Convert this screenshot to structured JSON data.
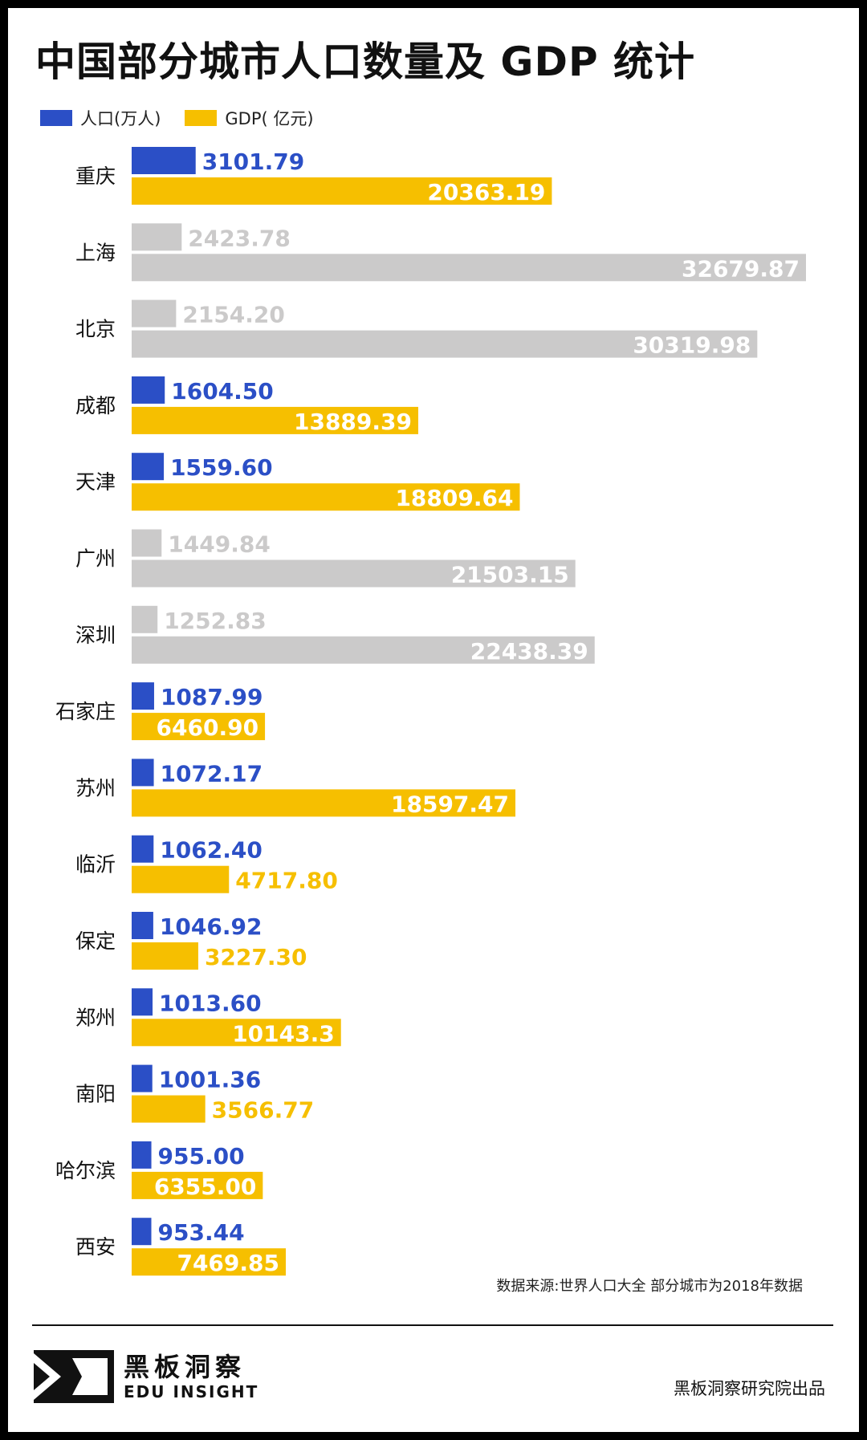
{
  "title": "中国部分城市人口数量及 GDP 统计",
  "legend": {
    "population": "人口(万人)",
    "gdp": "GDP( 亿元)"
  },
  "colors": {
    "population": "#2b4fc6",
    "gdp": "#f6bf00",
    "highlight_off": "#cbcaca",
    "population_label": "#2b4fc6",
    "gdp_label_outside": "#f6bf00",
    "label_inside": "#ffffff"
  },
  "chart_data": {
    "type": "bar",
    "orientation": "horizontal",
    "grid": false,
    "legend_position": "top-left",
    "categories": [
      "重庆",
      "上海",
      "北京",
      "成都",
      "天津",
      "广州",
      "深圳",
      "石家庄",
      "苏州",
      "临沂",
      "保定",
      "郑州",
      "南阳",
      "哈尔滨",
      "西安"
    ],
    "series": [
      {
        "name": "人口(万人)",
        "values": [
          3101.79,
          2423.78,
          2154.2,
          1604.5,
          1559.6,
          1449.84,
          1252.83,
          1087.99,
          1072.17,
          1062.4,
          1046.92,
          1013.6,
          1001.36,
          955.0,
          953.44
        ],
        "labels": [
          "3101.79",
          "2423.78",
          "2154.20",
          "1604.50",
          "1559.60",
          "1449.84",
          "1252.83",
          "1087.99",
          "1072.17",
          "1062.40",
          "1046.92",
          "1013.60",
          "1001.36",
          "955.00",
          "953.44"
        ]
      },
      {
        "name": "GDP( 亿元)",
        "values": [
          20363.19,
          32679.87,
          30319.98,
          13889.39,
          18809.64,
          21503.15,
          22438.39,
          6460.9,
          18597.47,
          4717.8,
          3227.3,
          10143.3,
          3566.77,
          6355.0,
          7469.85
        ],
        "labels": [
          "20363.19",
          "32679.87",
          "30319.98",
          "13889.39",
          "18809.64",
          "21503.15",
          "22438.39",
          "6460.90",
          "18597.47",
          "4717.80",
          "3227.30",
          "10143.3",
          "3566.77",
          "6355.00",
          "7469.85"
        ]
      }
    ],
    "greyed_out": [
      false,
      true,
      true,
      false,
      false,
      true,
      true,
      false,
      false,
      false,
      false,
      false,
      false,
      false,
      false
    ]
  },
  "source": "数据来源:世界人口大全 部分城市为2018年数据",
  "brand": {
    "name_cn": "黑板洞察",
    "name_en": "EDU INSIGHT",
    "credit": "黑板洞察研究院出品"
  }
}
